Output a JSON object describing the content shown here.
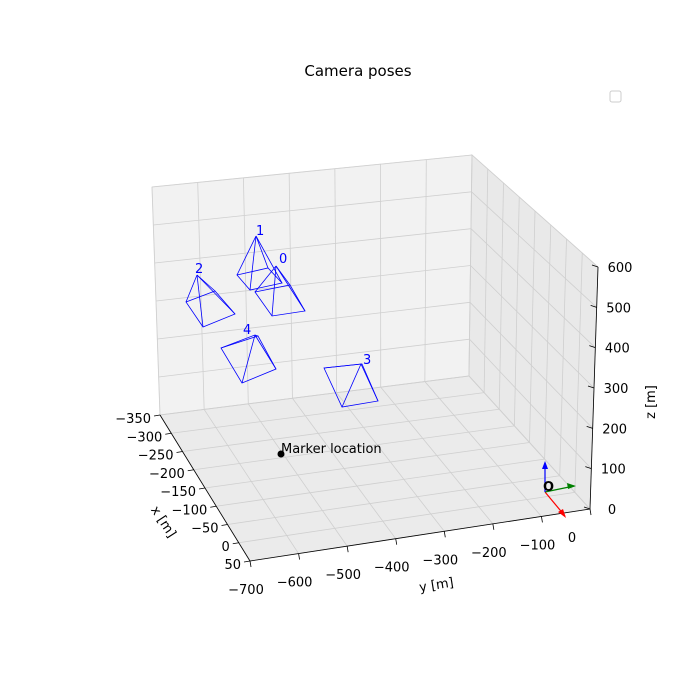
{
  "chart_data": {
    "type": "3d-camera-poses",
    "title": "Camera poses",
    "xlabel": "x [m]",
    "ylabel": "y [m]",
    "zlabel": "z [m]",
    "xlim": [
      -350,
      50
    ],
    "ylim": [
      -700,
      0
    ],
    "zlim": [
      0,
      600
    ],
    "x_ticks": [
      "−350",
      "−300",
      "−250",
      "−200",
      "−150",
      "−100",
      "−50",
      "0",
      "50"
    ],
    "y_ticks": [
      "−700",
      "−600",
      "−500",
      "−400",
      "−300",
      "−200",
      "−100",
      "0"
    ],
    "z_ticks": [
      "0",
      "100",
      "200",
      "300",
      "400",
      "500",
      "600"
    ],
    "grid": true,
    "legend_location": "top-right",
    "legend_entries": [],
    "cameras": [
      {
        "id": "0",
        "color": "#0000ff"
      },
      {
        "id": "1",
        "color": "#0000ff"
      },
      {
        "id": "2",
        "color": "#0000ff"
      },
      {
        "id": "3",
        "color": "#0000ff"
      },
      {
        "id": "4",
        "color": "#0000ff"
      }
    ],
    "marker": {
      "label": "Marker location",
      "color": "#000000"
    },
    "origin": {
      "label": "O",
      "x_axis_color": "#ff0000",
      "y_axis_color": "#008000",
      "z_axis_color": "#0000ff"
    }
  }
}
